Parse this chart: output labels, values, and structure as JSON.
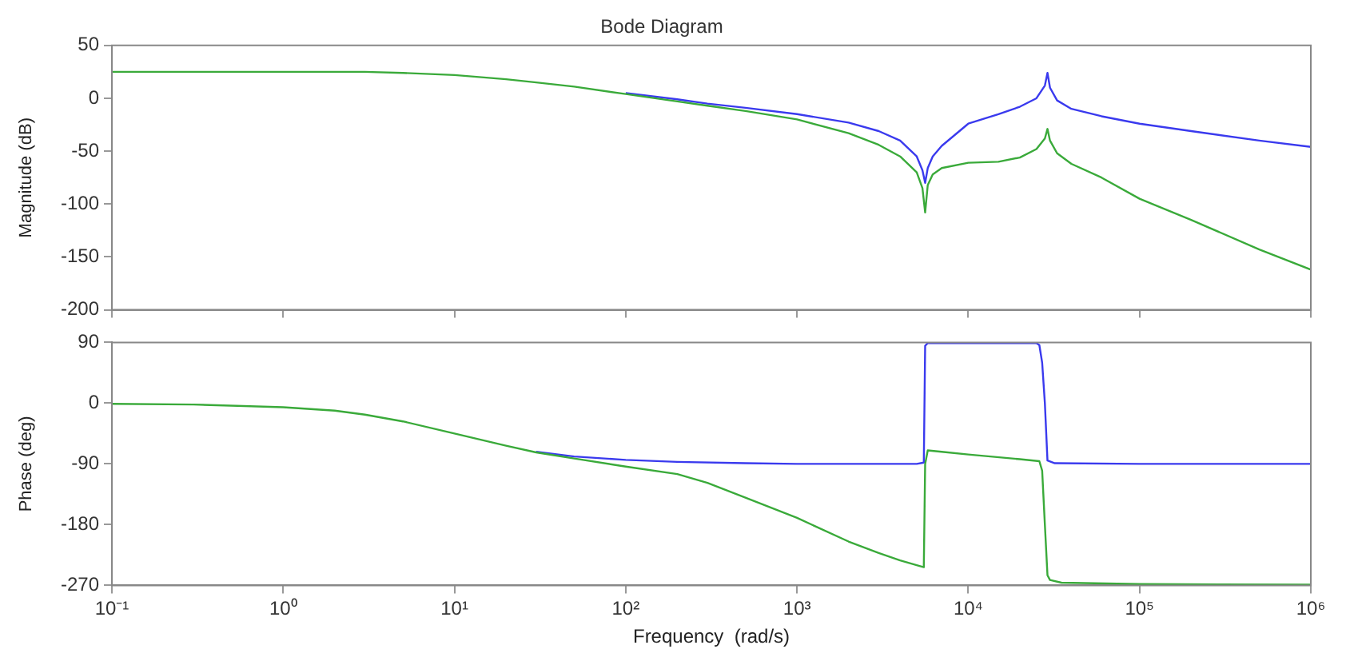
{
  "chart_data": [
    {
      "type": "line",
      "title": "Bode Diagram",
      "ylabel": "Magnitude (dB)",
      "log": "x",
      "grid": false,
      "legend": false,
      "marker": "none",
      "line_style": "solid",
      "tick_labels": "y",
      "xlim": [
        0.1,
        1000000
      ],
      "xticks": [
        {
          "value": 0.1,
          "label": null
        },
        {
          "value": 1,
          "label": null
        },
        {
          "value": 10,
          "label": null
        },
        {
          "value": 100,
          "label": null
        },
        {
          "value": 1000,
          "label": null
        },
        {
          "value": 10000,
          "label": null
        },
        {
          "value": 100000,
          "label": null
        },
        {
          "value": 1000000,
          "label": null
        }
      ],
      "ylim": [
        -200,
        50
      ],
      "yticks": [
        -200,
        -150,
        -100,
        -50,
        0,
        50
      ],
      "series": [
        {
          "color": "#3a3aee",
          "x": [
            100,
            200,
            300,
            500,
            1000,
            2000,
            3000,
            4000,
            5000,
            5400,
            5600,
            5800,
            6200,
            7000,
            10000,
            15000,
            20000,
            25000,
            28000,
            29000,
            30000,
            33000,
            40000,
            60000,
            100000,
            200000,
            500000,
            1000000
          ],
          "values": [
            5,
            -1,
            -5,
            -9,
            -15,
            -23,
            -31,
            -40,
            -55,
            -68,
            -80,
            -66,
            -55,
            -45,
            -24,
            -15,
            -8,
            0,
            12,
            24,
            10,
            -2,
            -10,
            -17,
            -24,
            -31,
            -40,
            -46
          ]
        },
        {
          "color": "#3aaa3a",
          "x": [
            0.1,
            0.3,
            1,
            2,
            3,
            5,
            10,
            20,
            30,
            50,
            100,
            200,
            300,
            500,
            1000,
            2000,
            3000,
            4000,
            5000,
            5400,
            5600,
            5800,
            6200,
            7000,
            10000,
            15000,
            20000,
            25000,
            28000,
            29000,
            30000,
            33000,
            40000,
            60000,
            100000,
            200000,
            500000,
            1000000
          ],
          "values": [
            25,
            25,
            25,
            25,
            25,
            24,
            22,
            18,
            15,
            11,
            4,
            -3,
            -7,
            -12,
            -20,
            -33,
            -44,
            -55,
            -70,
            -85,
            -108,
            -82,
            -72,
            -66,
            -61,
            -60,
            -56,
            -48,
            -38,
            -29,
            -40,
            -52,
            -62,
            -75,
            -95,
            -115,
            -143,
            -162
          ]
        }
      ]
    },
    {
      "type": "line",
      "xlabel": "Frequency  (rad/s)",
      "ylabel": "Phase (deg)",
      "log": "x",
      "grid": false,
      "legend": false,
      "marker": "none",
      "line_style": "solid",
      "xlim": [
        0.1,
        1000000
      ],
      "xticks": [
        {
          "value": 0.1,
          "label": "10⁻¹"
        },
        {
          "value": 1,
          "label": "10⁰"
        },
        {
          "value": 10,
          "label": "10¹"
        },
        {
          "value": 100,
          "label": "10²"
        },
        {
          "value": 1000,
          "label": "10³"
        },
        {
          "value": 10000,
          "label": "10⁴"
        },
        {
          "value": 100000,
          "label": "10⁵"
        },
        {
          "value": 1000000,
          "label": "10⁶"
        }
      ],
      "ylim": [
        -270,
        90
      ],
      "yticks": [
        -270,
        -180,
        -90,
        0,
        90
      ],
      "series": [
        {
          "color": "#3a3aee",
          "x": [
            30,
            50,
            100,
            200,
            500,
            1000,
            5000,
            5500,
            5600,
            5800,
            10000,
            20000,
            25000,
            26000,
            27000,
            28000,
            29000,
            32000,
            100000,
            1000000
          ],
          "values": [
            -72,
            -79,
            -84,
            -87,
            -89,
            -90,
            -90,
            -88,
            85,
            89,
            89,
            89,
            89,
            86,
            60,
            0,
            -85,
            -89,
            -90,
            -90
          ]
        },
        {
          "color": "#3aaa3a",
          "x": [
            0.1,
            0.3,
            1,
            2,
            3,
            5,
            10,
            20,
            30,
            50,
            100,
            200,
            300,
            500,
            1000,
            2000,
            3000,
            4000,
            5000,
            5500,
            5600,
            5800,
            7000,
            10000,
            20000,
            26000,
            27000,
            28000,
            29000,
            30000,
            35000,
            100000,
            1000000
          ],
          "values": [
            -1,
            -2,
            -6,
            -11,
            -17,
            -27,
            -45,
            -63,
            -73,
            -82,
            -94,
            -105,
            -118,
            -140,
            -170,
            -205,
            -222,
            -233,
            -240,
            -243,
            -90,
            -70,
            -72,
            -76,
            -83,
            -86,
            -100,
            -180,
            -255,
            -262,
            -266,
            -268,
            -269
          ]
        }
      ]
    }
  ]
}
